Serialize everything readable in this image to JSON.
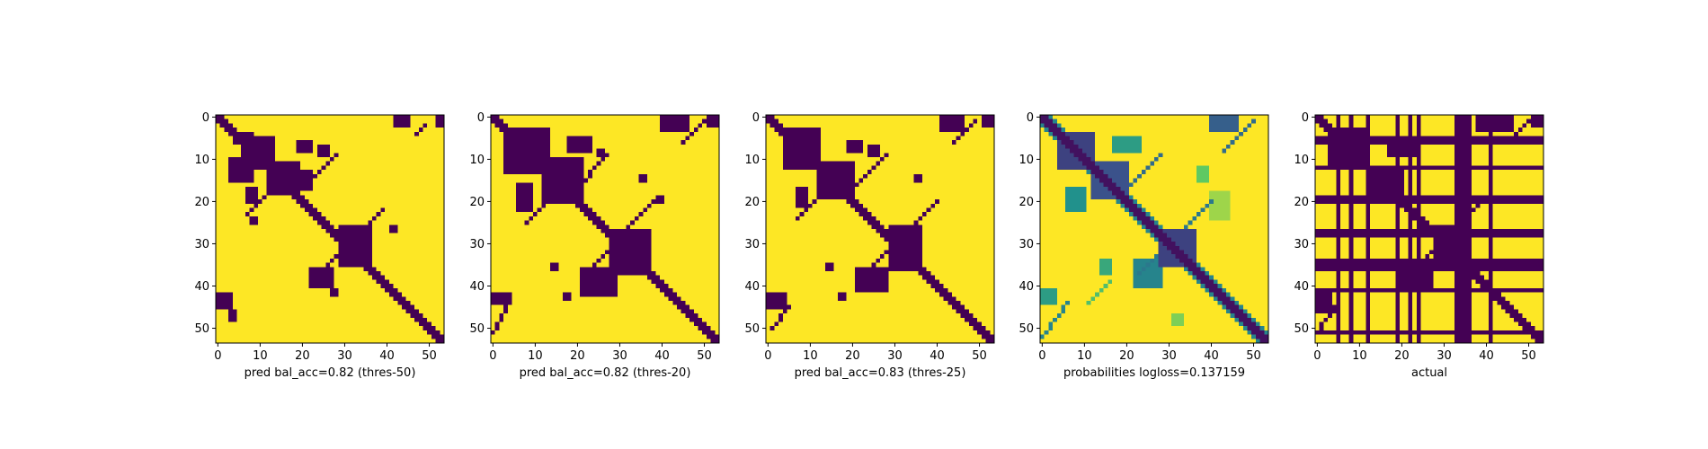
{
  "colors": {
    "background_low": "#440154",
    "background_high": "#fde725",
    "axis": "#000000",
    "viridis_stops": [
      "#440154",
      "#3b528b",
      "#21918c",
      "#5ec962",
      "#fde725"
    ]
  },
  "chart_data": [
    {
      "type": "heatmap",
      "title": "",
      "xlabel": "pred bal_acc=0.82 (thres-50)",
      "ylabel": "",
      "matrix_size": 54,
      "xlim": [
        -0.5,
        53.5
      ],
      "ylim": [
        53.5,
        -0.5
      ],
      "xticks": [
        0,
        10,
        20,
        30,
        40,
        50
      ],
      "yticks": [
        0,
        10,
        20,
        30,
        40,
        50
      ],
      "colormap": "viridis",
      "value_range": [
        0,
        1
      ],
      "background_value": 1,
      "diagonal_band": {
        "value": 0,
        "halfwidth": 1
      },
      "regions": [
        {
          "value": 0,
          "rows": [
            0,
            2
          ],
          "cols": [
            42,
            45
          ]
        },
        {
          "value": 0,
          "rows": [
            0,
            2
          ],
          "cols": [
            52,
            53
          ]
        },
        {
          "value": 0,
          "rows": [
            4,
            6
          ],
          "cols": [
            4,
            8
          ]
        },
        {
          "value": 0,
          "rows": [
            5,
            12
          ],
          "cols": [
            6,
            13
          ]
        },
        {
          "value": 0,
          "rows": [
            10,
            15
          ],
          "cols": [
            3,
            8
          ]
        },
        {
          "value": 0,
          "rows": [
            11,
            18
          ],
          "cols": [
            12,
            19
          ]
        },
        {
          "value": 0,
          "rows": [
            13,
            17
          ],
          "cols": [
            19,
            22
          ]
        },
        {
          "value": 0,
          "rows": [
            6,
            8
          ],
          "cols": [
            19,
            22
          ]
        },
        {
          "value": 0,
          "rows": [
            7,
            9
          ],
          "cols": [
            24,
            26
          ]
        },
        {
          "value": 0,
          "rows": [
            17,
            20
          ],
          "cols": [
            7,
            9
          ]
        },
        {
          "value": 0,
          "rows": [
            24,
            25
          ],
          "cols": [
            8,
            9
          ]
        },
        {
          "value": 0,
          "rows": [
            26,
            35
          ],
          "cols": [
            29,
            36
          ]
        },
        {
          "value": 0,
          "rows": [
            36,
            40
          ],
          "cols": [
            22,
            27
          ]
        },
        {
          "value": 0,
          "rows": [
            41,
            42
          ],
          "cols": [
            27,
            28
          ]
        },
        {
          "value": 0,
          "rows": [
            42,
            45
          ],
          "cols": [
            0,
            3
          ]
        },
        {
          "value": 0,
          "rows": [
            46,
            48
          ],
          "cols": [
            3,
            4
          ]
        },
        {
          "value": 0,
          "rows": [
            26,
            27
          ],
          "cols": [
            41,
            42
          ]
        }
      ],
      "anti_diagonals": [
        {
          "value": 0,
          "from": [
            9,
            28
          ],
          "to": [
            18,
            19
          ],
          "halfwidth": 0
        },
        {
          "value": 0,
          "from": [
            2,
            49
          ],
          "to": [
            4,
            47
          ],
          "halfwidth": 0
        },
        {
          "value": 0,
          "from": [
            22,
            39
          ],
          "to": [
            36,
            25
          ],
          "halfwidth": 0
        },
        {
          "value": 0,
          "from": [
            19,
            11
          ],
          "to": [
            23,
            7
          ],
          "halfwidth": 0
        }
      ]
    },
    {
      "type": "heatmap",
      "title": "",
      "xlabel": "pred bal_acc=0.82 (thres-20)",
      "ylabel": "",
      "matrix_size": 54,
      "xlim": [
        -0.5,
        53.5
      ],
      "ylim": [
        53.5,
        -0.5
      ],
      "xticks": [
        0,
        10,
        20,
        30,
        40,
        50
      ],
      "yticks": [
        0,
        10,
        20,
        30,
        40,
        50
      ],
      "colormap": "viridis",
      "value_range": [
        0,
        1
      ],
      "background_value": 1,
      "diagonal_band": {
        "value": 0,
        "halfwidth": 1
      },
      "regions": [
        {
          "value": 0,
          "rows": [
            0,
            3
          ],
          "cols": [
            40,
            46
          ]
        },
        {
          "value": 0,
          "rows": [
            0,
            2
          ],
          "cols": [
            51,
            53
          ]
        },
        {
          "value": 0,
          "rows": [
            3,
            13
          ],
          "cols": [
            3,
            13
          ]
        },
        {
          "value": 0,
          "rows": [
            5,
            8
          ],
          "cols": [
            18,
            23
          ]
        },
        {
          "value": 0,
          "rows": [
            10,
            20
          ],
          "cols": [
            12,
            21
          ]
        },
        {
          "value": 0,
          "rows": [
            8,
            9
          ],
          "cols": [
            25,
            26
          ]
        },
        {
          "value": 0,
          "rows": [
            14,
            15
          ],
          "cols": [
            35,
            36
          ]
        },
        {
          "value": 0,
          "rows": [
            16,
            22
          ],
          "cols": [
            6,
            9
          ]
        },
        {
          "value": 0,
          "rows": [
            19,
            20
          ],
          "cols": [
            39,
            40
          ]
        },
        {
          "value": 0,
          "rows": [
            27,
            37
          ],
          "cols": [
            28,
            37
          ]
        },
        {
          "value": 0,
          "rows": [
            36,
            42
          ],
          "cols": [
            21,
            29
          ]
        },
        {
          "value": 0,
          "rows": [
            35,
            36
          ],
          "cols": [
            14,
            15
          ]
        },
        {
          "value": 0,
          "rows": [
            42,
            44
          ],
          "cols": [
            0,
            4
          ]
        },
        {
          "value": 0,
          "rows": [
            42,
            43
          ],
          "cols": [
            17,
            18
          ]
        },
        {
          "value": 0,
          "rows": [
            25,
            26
          ],
          "cols": [
            25,
            26
          ]
        }
      ],
      "anti_diagonals": [
        {
          "value": 0,
          "from": [
            1,
            50
          ],
          "to": [
            6,
            45
          ],
          "halfwidth": 0
        },
        {
          "value": 0,
          "from": [
            9,
            27
          ],
          "to": [
            18,
            19
          ],
          "halfwidth": 0
        },
        {
          "value": 0,
          "from": [
            20,
            38
          ],
          "to": [
            37,
            22
          ],
          "halfwidth": 0
        },
        {
          "value": 0,
          "from": [
            44,
            4
          ],
          "to": [
            51,
            0
          ],
          "halfwidth": 0
        },
        {
          "value": 0,
          "from": [
            21,
            12
          ],
          "to": [
            25,
            8
          ],
          "halfwidth": 0
        }
      ]
    },
    {
      "type": "heatmap",
      "title": "",
      "xlabel": "pred bal_acc=0.83 (thres-25)",
      "ylabel": "",
      "matrix_size": 54,
      "xlim": [
        -0.5,
        53.5
      ],
      "ylim": [
        53.5,
        -0.5
      ],
      "xticks": [
        0,
        10,
        20,
        30,
        40,
        50
      ],
      "yticks": [
        0,
        10,
        20,
        30,
        40,
        50
      ],
      "colormap": "viridis",
      "value_range": [
        0,
        1
      ],
      "background_value": 1,
      "diagonal_band": {
        "value": 0,
        "halfwidth": 1
      },
      "regions": [
        {
          "value": 0,
          "rows": [
            0,
            3
          ],
          "cols": [
            41,
            46
          ]
        },
        {
          "value": 0,
          "rows": [
            0,
            2
          ],
          "cols": [
            51,
            53
          ]
        },
        {
          "value": 0,
          "rows": [
            3,
            12
          ],
          "cols": [
            4,
            12
          ]
        },
        {
          "value": 0,
          "rows": [
            6,
            8
          ],
          "cols": [
            19,
            22
          ]
        },
        {
          "value": 0,
          "rows": [
            7,
            9
          ],
          "cols": [
            24,
            26
          ]
        },
        {
          "value": 0,
          "rows": [
            11,
            19
          ],
          "cols": [
            12,
            20
          ]
        },
        {
          "value": 0,
          "rows": [
            14,
            15
          ],
          "cols": [
            35,
            36
          ]
        },
        {
          "value": 0,
          "rows": [
            17,
            21
          ],
          "cols": [
            7,
            9
          ]
        },
        {
          "value": 0,
          "rows": [
            26,
            36
          ],
          "cols": [
            29,
            36
          ]
        },
        {
          "value": 0,
          "rows": [
            36,
            41
          ],
          "cols": [
            21,
            28
          ]
        },
        {
          "value": 0,
          "rows": [
            35,
            36
          ],
          "cols": [
            14,
            15
          ]
        },
        {
          "value": 0,
          "rows": [
            42,
            45
          ],
          "cols": [
            0,
            4
          ]
        },
        {
          "value": 0,
          "rows": [
            42,
            43
          ],
          "cols": [
            17,
            18
          ]
        }
      ],
      "anti_diagonals": [
        {
          "value": 0,
          "from": [
            1,
            49
          ],
          "to": [
            6,
            44
          ],
          "halfwidth": 0
        },
        {
          "value": 0,
          "from": [
            9,
            28
          ],
          "to": [
            18,
            19
          ],
          "halfwidth": 0
        },
        {
          "value": 0,
          "from": [
            20,
            40
          ],
          "to": [
            37,
            23
          ],
          "halfwidth": 0
        },
        {
          "value": 0,
          "from": [
            45,
            5
          ],
          "to": [
            50,
            1
          ],
          "halfwidth": 0
        },
        {
          "value": 0,
          "from": [
            20,
            11
          ],
          "to": [
            24,
            7
          ],
          "halfwidth": 0
        }
      ]
    },
    {
      "type": "heatmap",
      "title": "",
      "xlabel": "probabilities logloss=0.137159",
      "ylabel": "",
      "matrix_size": 54,
      "xlim": [
        -0.5,
        53.5
      ],
      "ylim": [
        53.5,
        -0.5
      ],
      "xticks": [
        0,
        10,
        20,
        30,
        40,
        50
      ],
      "yticks": [
        0,
        10,
        20,
        30,
        40,
        50
      ],
      "colormap": "viridis",
      "value_range": [
        0,
        1
      ],
      "background_value": 1,
      "diagonal_band": {
        "value": 0.05,
        "halfwidth": 1,
        "edge_value": 0.45
      },
      "regions": [
        {
          "value": 0.3,
          "rows": [
            0,
            3
          ],
          "cols": [
            40,
            46
          ]
        },
        {
          "value": 0.2,
          "rows": [
            4,
            12
          ],
          "cols": [
            4,
            12
          ]
        },
        {
          "value": 0.55,
          "rows": [
            5,
            8
          ],
          "cols": [
            17,
            23
          ]
        },
        {
          "value": 0.25,
          "rows": [
            11,
            19
          ],
          "cols": [
            12,
            20
          ]
        },
        {
          "value": 0.5,
          "rows": [
            17,
            22
          ],
          "cols": [
            6,
            10
          ]
        },
        {
          "value": 0.2,
          "rows": [
            27,
            35
          ],
          "cols": [
            28,
            36
          ]
        },
        {
          "value": 0.45,
          "rows": [
            34,
            40
          ],
          "cols": [
            22,
            28
          ]
        },
        {
          "value": 0.6,
          "rows": [
            34,
            37
          ],
          "cols": [
            14,
            16
          ]
        },
        {
          "value": 0.55,
          "rows": [
            41,
            44
          ],
          "cols": [
            0,
            3
          ]
        },
        {
          "value": 0.8,
          "rows": [
            47,
            49
          ],
          "cols": [
            31,
            33
          ]
        },
        {
          "value": 0.75,
          "rows": [
            12,
            15
          ],
          "cols": [
            37,
            39
          ]
        },
        {
          "value": 0.85,
          "rows": [
            18,
            24
          ],
          "cols": [
            40,
            44
          ]
        }
      ],
      "anti_diagonals": [
        {
          "value": 0.35,
          "from": [
            1,
            50
          ],
          "to": [
            8,
            43
          ],
          "halfwidth": 0
        },
        {
          "value": 0.35,
          "from": [
            9,
            28
          ],
          "to": [
            18,
            19
          ],
          "halfwidth": 0
        },
        {
          "value": 0.4,
          "from": [
            20,
            40
          ],
          "to": [
            37,
            23
          ],
          "halfwidth": 0
        },
        {
          "value": 0.45,
          "from": [
            44,
            6
          ],
          "to": [
            52,
            0
          ],
          "halfwidth": 0
        },
        {
          "value": 0.7,
          "from": [
            39,
            16
          ],
          "to": [
            44,
            11
          ],
          "halfwidth": 0
        }
      ]
    },
    {
      "type": "heatmap",
      "title": "",
      "xlabel": "actual",
      "ylabel": "",
      "matrix_size": 54,
      "xlim": [
        -0.5,
        53.5
      ],
      "ylim": [
        53.5,
        -0.5
      ],
      "xticks": [
        0,
        10,
        20,
        30,
        40,
        50
      ],
      "yticks": [
        0,
        10,
        20,
        30,
        40,
        50
      ],
      "colormap": "viridis",
      "value_range": [
        0,
        1
      ],
      "background_value": 1,
      "diagonal_band": {
        "value": 0,
        "halfwidth": 1
      },
      "masked_rows": [
        5,
        6,
        12,
        19,
        20,
        27,
        28,
        34,
        35,
        36,
        41,
        51
      ],
      "masked_cols": [
        5,
        8,
        12,
        19,
        22,
        24,
        33,
        34,
        35,
        36,
        41
      ],
      "masked_value": 0,
      "regions": [
        {
          "value": 0,
          "rows": [
            0,
            3
          ],
          "cols": [
            38,
            46
          ]
        },
        {
          "value": 0,
          "rows": [
            0,
            2
          ],
          "cols": [
            51,
            53
          ]
        },
        {
          "value": 0,
          "rows": [
            3,
            12
          ],
          "cols": [
            3,
            12
          ]
        },
        {
          "value": 0,
          "rows": [
            6,
            9
          ],
          "cols": [
            17,
            24
          ]
        },
        {
          "value": 0,
          "rows": [
            12,
            19
          ],
          "cols": [
            12,
            20
          ]
        },
        {
          "value": 0,
          "rows": [
            26,
            36
          ],
          "cols": [
            28,
            36
          ]
        },
        {
          "value": 0,
          "rows": [
            35,
            41
          ],
          "cols": [
            20,
            27
          ]
        },
        {
          "value": 0,
          "rows": [
            42,
            46
          ],
          "cols": [
            0,
            3
          ]
        }
      ],
      "anti_diagonals": [
        {
          "value": 0,
          "from": [
            1,
            50
          ],
          "to": [
            6,
            45
          ],
          "halfwidth": 0
        },
        {
          "value": 0,
          "from": [
            20,
            39
          ],
          "to": [
            37,
            22
          ],
          "halfwidth": 0
        },
        {
          "value": 0,
          "from": [
            44,
            5
          ],
          "to": [
            51,
            0
          ],
          "halfwidth": 0
        }
      ]
    }
  ]
}
